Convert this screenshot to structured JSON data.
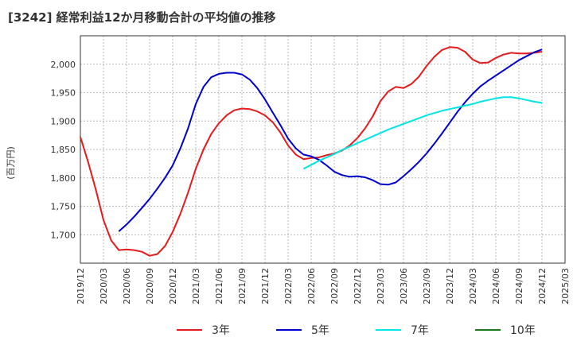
{
  "chart_data": {
    "type": "line",
    "title": "[3242]  経常利益12か月移動合計の平均値の推移",
    "ylabel": "(百万円)",
    "xlabel": "",
    "ylim": [
      1650,
      2050
    ],
    "yticks": [
      1700,
      1750,
      1800,
      1850,
      1900,
      1950,
      2000
    ],
    "ytick_labels": [
      "1,700",
      "1,750",
      "1,800",
      "1,850",
      "1,900",
      "1,950",
      "2,000"
    ],
    "xlim": [
      "2019-12",
      "2025-03"
    ],
    "xticks": [
      "2019/12",
      "2020/03",
      "2020/06",
      "2020/09",
      "2020/12",
      "2021/03",
      "2021/06",
      "2021/09",
      "2021/12",
      "2022/03",
      "2022/06",
      "2022/09",
      "2022/12",
      "2023/03",
      "2023/06",
      "2023/09",
      "2023/12",
      "2024/03",
      "2024/06",
      "2024/09",
      "2024/12",
      "2025/03"
    ],
    "grid": true,
    "legend_position": "bottom",
    "series": [
      {
        "name": "3年",
        "color": "#e41a1c",
        "x": [
          "2019-12",
          "2020-01",
          "2020-02",
          "2020-03",
          "2020-04",
          "2020-05",
          "2020-06",
          "2020-07",
          "2020-08",
          "2020-09",
          "2020-10",
          "2020-11",
          "2020-12",
          "2021-01",
          "2021-02",
          "2021-03",
          "2021-04",
          "2021-05",
          "2021-06",
          "2021-07",
          "2021-08",
          "2021-09",
          "2021-10",
          "2021-11",
          "2021-12",
          "2022-01",
          "2022-02",
          "2022-03",
          "2022-04",
          "2022-05",
          "2022-06",
          "2022-07",
          "2022-08",
          "2022-09",
          "2022-10",
          "2022-11",
          "2022-12",
          "2023-01",
          "2023-02",
          "2023-03",
          "2023-04",
          "2023-05",
          "2023-06",
          "2023-07",
          "2023-08",
          "2023-09",
          "2023-10",
          "2023-11",
          "2023-12",
          "2024-01",
          "2024-02",
          "2024-03",
          "2024-04",
          "2024-05",
          "2024-06",
          "2024-07",
          "2024-08",
          "2024-09",
          "2024-10",
          "2024-11",
          "2024-12"
        ],
        "values": [
          1872,
          1828,
          1780,
          1726,
          1690,
          1673,
          1674,
          1673,
          1670,
          1663,
          1666,
          1680,
          1705,
          1737,
          1774,
          1816,
          1850,
          1877,
          1896,
          1910,
          1919,
          1922,
          1921,
          1917,
          1910,
          1898,
          1880,
          1857,
          1841,
          1833,
          1835,
          1836,
          1840,
          1843,
          1848,
          1857,
          1870,
          1887,
          1908,
          1935,
          1952,
          1960,
          1958,
          1965,
          1978,
          1997,
          2013,
          2025,
          2030,
          2029,
          2022,
          2008,
          2002,
          2003,
          2011,
          2017,
          2020,
          2019,
          2019,
          2020,
          2022
        ]
      },
      {
        "name": "5年",
        "color": "#0000cc",
        "x": [
          "2020-05",
          "2020-06",
          "2020-07",
          "2020-08",
          "2020-09",
          "2020-10",
          "2020-11",
          "2020-12",
          "2021-01",
          "2021-02",
          "2021-03",
          "2021-04",
          "2021-05",
          "2021-06",
          "2021-07",
          "2021-08",
          "2021-09",
          "2021-10",
          "2021-11",
          "2021-12",
          "2022-01",
          "2022-02",
          "2022-03",
          "2022-04",
          "2022-05",
          "2022-06",
          "2022-07",
          "2022-08",
          "2022-09",
          "2022-10",
          "2022-11",
          "2022-12",
          "2023-01",
          "2023-02",
          "2023-03",
          "2023-04",
          "2023-05",
          "2023-06",
          "2023-07",
          "2023-08",
          "2023-09",
          "2023-10",
          "2023-11",
          "2023-12",
          "2024-01",
          "2024-02",
          "2024-03",
          "2024-04",
          "2024-05",
          "2024-06",
          "2024-07",
          "2024-08",
          "2024-09",
          "2024-10",
          "2024-11",
          "2024-12"
        ],
        "values": [
          1706,
          1718,
          1732,
          1747,
          1763,
          1781,
          1800,
          1822,
          1852,
          1887,
          1930,
          1960,
          1977,
          1983,
          1985,
          1985,
          1982,
          1973,
          1958,
          1938,
          1915,
          1893,
          1869,
          1852,
          1841,
          1838,
          1832,
          1822,
          1811,
          1805,
          1802,
          1803,
          1801,
          1796,
          1789,
          1788,
          1792,
          1803,
          1815,
          1828,
          1843,
          1860,
          1878,
          1897,
          1916,
          1933,
          1948,
          1961,
          1971,
          1980,
          1989,
          1998,
          2007,
          2014,
          2021,
          2026
        ]
      },
      {
        "name": "7年",
        "color": "#00e5e5",
        "x": [
          "2022-05",
          "2022-06",
          "2022-07",
          "2022-08",
          "2022-09",
          "2022-10",
          "2022-11",
          "2022-12",
          "2023-01",
          "2023-02",
          "2023-03",
          "2023-04",
          "2023-05",
          "2023-06",
          "2023-07",
          "2023-08",
          "2023-09",
          "2023-10",
          "2023-11",
          "2023-12",
          "2024-01",
          "2024-02",
          "2024-03",
          "2024-04",
          "2024-05",
          "2024-06",
          "2024-07",
          "2024-08",
          "2024-09",
          "2024-10",
          "2024-11",
          "2024-12"
        ],
        "values": [
          1816,
          1823,
          1830,
          1836,
          1842,
          1849,
          1855,
          1861,
          1867,
          1873,
          1879,
          1885,
          1890,
          1895,
          1900,
          1905,
          1910,
          1914,
          1918,
          1921,
          1924,
          1927,
          1930,
          1934,
          1937,
          1940,
          1942,
          1942,
          1940,
          1937,
          1934,
          1932
        ]
      },
      {
        "name": "10年",
        "color": "#1a7a1a",
        "x": [],
        "values": []
      }
    ]
  }
}
